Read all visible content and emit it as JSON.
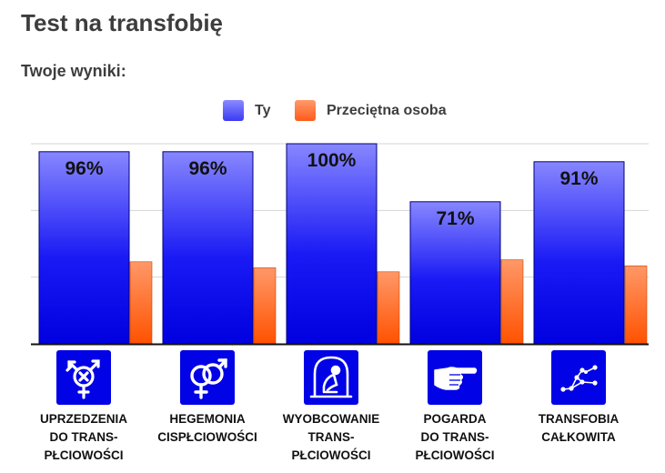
{
  "page": {
    "title": "Test na transfobię",
    "subtitle": "Twoje wyniki:"
  },
  "legend": [
    {
      "label": "Ty",
      "color": "#3a3af4"
    },
    {
      "label": "Przeciętna osoba",
      "color": "#ff5a1a"
    }
  ],
  "categories": [
    {
      "label": "UPRZEDZENIA\nDO TRANS-\nPŁCIOWOŚCI",
      "icon": "transgender-symbol-icon"
    },
    {
      "label": "HEGEMONIA\nCISPŁCIOWOŚCI",
      "icon": "linked-gender-symbols-icon"
    },
    {
      "label": "WYOBCOWANIE\nTRANS-\nPŁCIOWOŚCI",
      "icon": "person-in-bell-jar-icon"
    },
    {
      "label": "POGARDA\nDO TRANS-\nPŁCIOWOŚCI",
      "icon": "pointing-hand-icon"
    },
    {
      "label": "TRANSFOBIA\nCAŁKOWITA",
      "icon": "constellation-icon"
    }
  ],
  "chart_data": {
    "type": "bar",
    "categories": [
      "UPRZEDZENIA DO TRANSPŁCIOWOŚCI",
      "HEGEMONIA CISPŁCIOWOŚCI",
      "WYOBCOWANIE TRANSPŁCIOWOŚCI",
      "POGARDA DO TRANSPŁCIOWOŚCI",
      "TRANSFOBIA CAŁKOWITA"
    ],
    "series": [
      {
        "name": "Ty",
        "values": [
          96,
          96,
          100,
          71,
          91
        ],
        "labels": [
          "96%",
          "96%",
          "100%",
          "71%",
          "91%"
        ],
        "color": "#2a2af2"
      },
      {
        "name": "Przeciętna osoba",
        "values": [
          41,
          38,
          36,
          42,
          39
        ],
        "color": "#ff5a1a"
      }
    ],
    "ylim": [
      0,
      100
    ],
    "grid": true,
    "legend_position": "top-center"
  }
}
